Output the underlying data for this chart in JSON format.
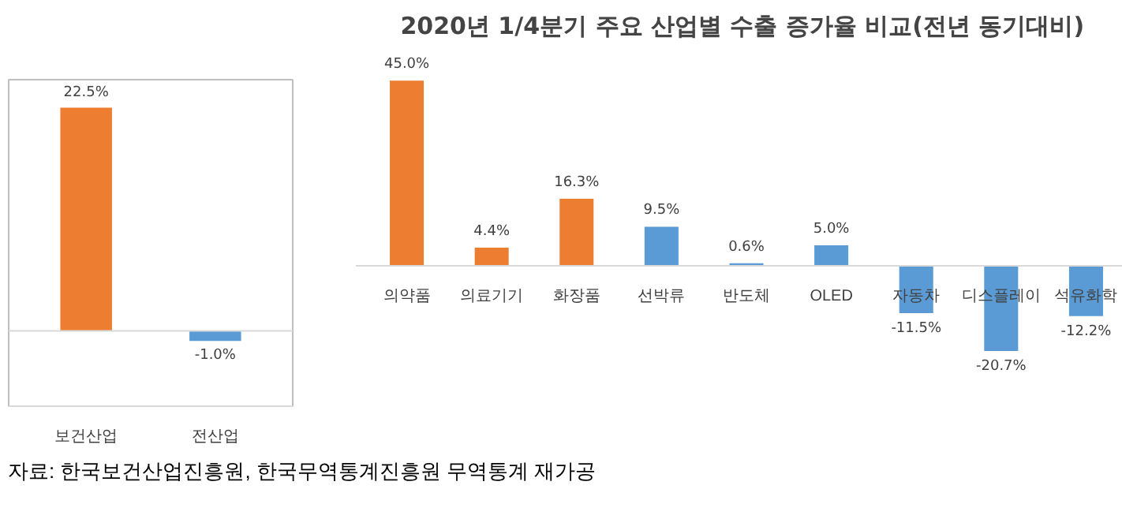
{
  "chart_data": [
    {
      "type": "bar",
      "categories": [
        "보건산업",
        "전산업"
      ],
      "values": [
        22.5,
        -1.0
      ],
      "colors": [
        "#ed7d31",
        "#5b9bd5"
      ],
      "value_labels": [
        "22.5%",
        "-1.0%"
      ],
      "annotations": [
        "자료: 한국보건산업진흥원, 한국무역통계진흥원 무역통계 재가공"
      ]
    },
    {
      "type": "bar",
      "title": "2020년  1/4분기 주요 산업별 수출 증가율 비교(전년 동기대비)",
      "categories": [
        "의약품",
        "의료기기",
        "화장품",
        "선박류",
        "반도체",
        "OLED",
        "자동차",
        "디스플레이",
        "석유화학"
      ],
      "values": [
        45.0,
        4.4,
        16.3,
        9.5,
        0.6,
        5.0,
        -11.5,
        -20.7,
        -12.2
      ],
      "colors": [
        "#ed7d31",
        "#ed7d31",
        "#ed7d31",
        "#5b9bd5",
        "#5b9bd5",
        "#5b9bd5",
        "#5b9bd5",
        "#5b9bd5",
        "#5b9bd5"
      ],
      "value_labels": [
        "45.0%",
        "4.4%",
        "16.3%",
        "9.5%",
        "0.6%",
        "5.0%",
        "-11.5%",
        "-20.7%",
        "-12.2%"
      ]
    }
  ]
}
